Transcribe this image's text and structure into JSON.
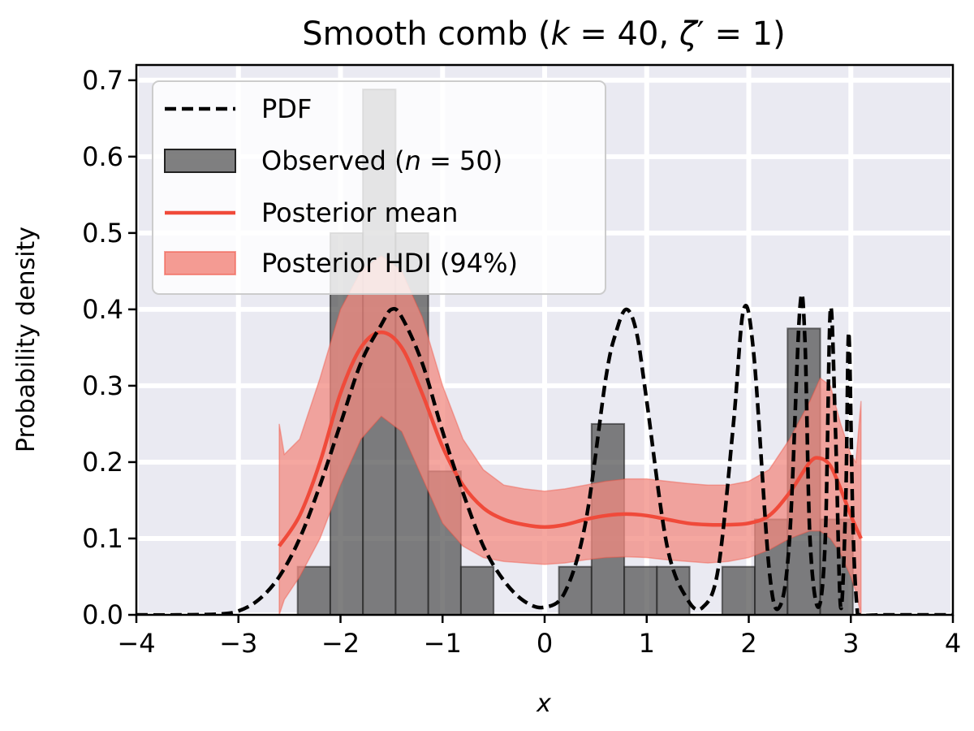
{
  "chart_data": {
    "type": "line",
    "title": "Smooth comb (k = 40, ζ′ = 1)",
    "xlabel": "x",
    "ylabel": "Probability density",
    "xlim": [
      -4,
      4
    ],
    "ylim": [
      0,
      0.72
    ],
    "xticks": [
      "−4",
      "−3",
      "−2",
      "−1",
      "0",
      "1",
      "2",
      "3",
      "4"
    ],
    "yticks": [
      "0.0",
      "0.1",
      "0.2",
      "0.3",
      "0.4",
      "0.5",
      "0.6",
      "0.7"
    ],
    "grid": true,
    "legend_position": "top-left",
    "legend": [
      {
        "label": "PDF",
        "kind": "dashed-line"
      },
      {
        "label": "Observed (n = 50)",
        "kind": "patch-gray"
      },
      {
        "label": "Posterior mean",
        "kind": "line-red"
      },
      {
        "label": "Posterior HDI (94%)",
        "kind": "patch-red"
      }
    ],
    "colors": {
      "background": "#eaeaf2",
      "grid": "#ffffff",
      "histogram": "#555555",
      "mean": "#f04a3a",
      "hdi": "#f28a80",
      "pdf": "#000000"
    },
    "histogram": {
      "name": "Observed (n = 50)",
      "bin_edges": [
        -2.42,
        -2.1,
        -1.78,
        -1.46,
        -1.14,
        -0.82,
        -0.5,
        -0.18,
        0.14,
        0.46,
        0.78,
        1.1,
        1.42,
        1.74,
        2.06,
        2.38,
        2.7,
        3.02
      ],
      "values": [
        0.063,
        0.5,
        0.688,
        0.5,
        0.188,
        0.063,
        0.0,
        0.0,
        0.063,
        0.25,
        0.063,
        0.063,
        0.0,
        0.063,
        0.125,
        0.375,
        0.125
      ]
    },
    "series": [
      {
        "name": "PDF",
        "style": "dashed",
        "x": [
          -4.0,
          -3.6,
          -3.2,
          -3.0,
          -2.8,
          -2.6,
          -2.4,
          -2.2,
          -2.0,
          -1.8,
          -1.6,
          -1.5,
          -1.4,
          -1.2,
          -1.0,
          -0.8,
          -0.6,
          -0.4,
          -0.2,
          0.0,
          0.2,
          0.4,
          0.6,
          0.7,
          0.8,
          0.9,
          1.0,
          1.2,
          1.4,
          1.55,
          1.7,
          1.85,
          1.95,
          2.05,
          2.2,
          2.3,
          2.4,
          2.5,
          2.55,
          2.6,
          2.68,
          2.75,
          2.8,
          2.85,
          2.9,
          2.95,
          2.98,
          3.02,
          3.06,
          3.1,
          3.3,
          3.6,
          4.0
        ],
        "y": [
          0.0,
          0.0,
          0.001,
          0.005,
          0.02,
          0.05,
          0.1,
          0.17,
          0.25,
          0.33,
          0.38,
          0.4,
          0.39,
          0.33,
          0.24,
          0.16,
          0.09,
          0.045,
          0.018,
          0.01,
          0.03,
          0.12,
          0.31,
          0.37,
          0.4,
          0.37,
          0.28,
          0.09,
          0.02,
          0.01,
          0.06,
          0.25,
          0.4,
          0.34,
          0.06,
          0.01,
          0.1,
          0.4,
          0.36,
          0.1,
          0.01,
          0.1,
          0.4,
          0.24,
          0.01,
          0.15,
          0.37,
          0.12,
          0.01,
          0.0,
          0.0,
          0.0,
          0.0
        ]
      },
      {
        "name": "Posterior mean",
        "style": "solid",
        "x": [
          -2.6,
          -2.4,
          -2.2,
          -2.0,
          -1.8,
          -1.6,
          -1.4,
          -1.2,
          -1.0,
          -0.8,
          -0.6,
          -0.4,
          -0.2,
          0.0,
          0.2,
          0.4,
          0.6,
          0.8,
          1.0,
          1.2,
          1.4,
          1.6,
          1.8,
          2.0,
          2.2,
          2.4,
          2.6,
          2.7,
          2.8,
          2.9,
          3.0,
          3.1
        ],
        "y": [
          0.09,
          0.13,
          0.2,
          0.29,
          0.35,
          0.37,
          0.35,
          0.29,
          0.22,
          0.17,
          0.14,
          0.125,
          0.118,
          0.115,
          0.118,
          0.125,
          0.13,
          0.132,
          0.13,
          0.125,
          0.12,
          0.118,
          0.118,
          0.12,
          0.13,
          0.16,
          0.2,
          0.205,
          0.195,
          0.165,
          0.13,
          0.1
        ]
      }
    ],
    "hdi": {
      "name": "Posterior HDI (94%)",
      "x": [
        -2.6,
        -2.55,
        -2.4,
        -2.2,
        -2.0,
        -1.8,
        -1.6,
        -1.4,
        -1.2,
        -1.0,
        -0.8,
        -0.6,
        -0.4,
        -0.2,
        0.0,
        0.2,
        0.4,
        0.6,
        0.8,
        1.0,
        1.2,
        1.4,
        1.6,
        1.8,
        2.0,
        2.2,
        2.4,
        2.6,
        2.7,
        2.8,
        2.9,
        3.0,
        3.05,
        3.1
      ],
      "lower": [
        0.0,
        0.02,
        0.05,
        0.1,
        0.17,
        0.23,
        0.26,
        0.24,
        0.18,
        0.12,
        0.09,
        0.075,
        0.07,
        0.068,
        0.066,
        0.068,
        0.072,
        0.075,
        0.076,
        0.075,
        0.072,
        0.07,
        0.068,
        0.07,
        0.075,
        0.085,
        0.1,
        0.11,
        0.11,
        0.1,
        0.08,
        0.05,
        0.03,
        0.0
      ],
      "upper": [
        0.25,
        0.21,
        0.23,
        0.31,
        0.4,
        0.45,
        0.47,
        0.45,
        0.39,
        0.3,
        0.23,
        0.19,
        0.17,
        0.165,
        0.162,
        0.165,
        0.17,
        0.175,
        0.178,
        0.178,
        0.175,
        0.172,
        0.17,
        0.17,
        0.175,
        0.19,
        0.23,
        0.28,
        0.31,
        0.3,
        0.25,
        0.21,
        0.2,
        0.28
      ]
    }
  }
}
